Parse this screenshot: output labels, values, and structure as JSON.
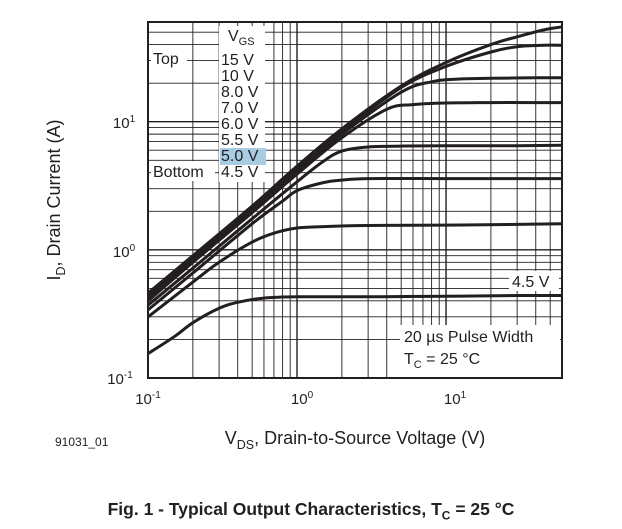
{
  "chart_data": {
    "type": "line",
    "x_scale": "log",
    "y_scale": "log",
    "xlim": [
      0.1,
      60
    ],
    "ylim": [
      0.1,
      60
    ],
    "x_ticks": [
      {
        "value": 0.1,
        "base": "10",
        "exp": "-1"
      },
      {
        "value": 1,
        "base": "10",
        "exp": "0"
      },
      {
        "value": 10,
        "base": "10",
        "exp": "1"
      }
    ],
    "y_ticks": [
      {
        "value": 0.1,
        "base": "10",
        "exp": "-1"
      },
      {
        "value": 1,
        "base": "10",
        "exp": "0"
      },
      {
        "value": 10,
        "base": "10",
        "exp": "1"
      }
    ],
    "xlabel": {
      "main": "V",
      "sub": "DS",
      "rest": ", Drain-to-Source Voltage (V)"
    },
    "ylabel": {
      "main": "I",
      "sub": "D",
      "rest": ", Drain Current (A)"
    },
    "grid": true,
    "legend": {
      "header_main": "V",
      "header_sub": "GS",
      "top_label": "Top",
      "bottom_label": "Bottom",
      "entries": [
        "15 V",
        "10 V",
        "8.0 V",
        "7.0 V",
        "6.0 V",
        "5.5 V",
        "5.0 V",
        "4.5 V"
      ],
      "highlight_index": 6,
      "highlight_color": "#a8cce4"
    },
    "annotations": {
      "curve_label": "4.5 V",
      "pulse_width": "20 µs Pulse Width",
      "temp_main": "T",
      "temp_sub": "C",
      "temp_rest": " = 25 °C"
    },
    "series": [
      {
        "x": [
          0.1,
          0.2,
          0.5,
          1,
          2,
          5,
          10,
          20,
          30,
          45,
          60
        ],
        "y": [
          0.46,
          0.9,
          2.2,
          4.5,
          8.8,
          19,
          29,
          40,
          46,
          52,
          55
        ]
      },
      {
        "x": [
          0.1,
          0.2,
          0.5,
          1,
          2,
          5,
          10,
          20,
          30,
          45,
          60
        ],
        "y": [
          0.44,
          0.87,
          2.15,
          4.3,
          8.4,
          18.5,
          27,
          35,
          38.5,
          39.5,
          39.5
        ]
      },
      {
        "x": [
          0.1,
          0.2,
          0.5,
          1,
          2,
          5,
          8,
          12,
          20,
          40,
          60
        ],
        "y": [
          0.42,
          0.83,
          2.05,
          4.1,
          8.0,
          17,
          20.5,
          21.5,
          21.8,
          22,
          22
        ]
      },
      {
        "x": [
          0.1,
          0.2,
          0.5,
          1,
          2,
          4,
          6,
          10,
          20,
          40,
          60
        ],
        "y": [
          0.4,
          0.8,
          1.95,
          3.9,
          7.5,
          12.5,
          13.6,
          14,
          14.1,
          14.1,
          14.1
        ]
      },
      {
        "x": [
          0.1,
          0.2,
          0.5,
          1,
          1.5,
          2,
          3,
          5,
          10,
          30,
          60
        ],
        "y": [
          0.37,
          0.72,
          1.75,
          3.4,
          4.9,
          5.9,
          6.35,
          6.45,
          6.5,
          6.5,
          6.55
        ]
      },
      {
        "x": [
          0.1,
          0.2,
          0.5,
          0.8,
          1,
          1.5,
          2,
          3,
          10,
          30,
          60
        ],
        "y": [
          0.34,
          0.66,
          1.6,
          2.4,
          2.9,
          3.35,
          3.5,
          3.6,
          3.6,
          3.6,
          3.6
        ]
      },
      {
        "x": [
          0.1,
          0.2,
          0.3,
          0.5,
          0.7,
          1,
          1.5,
          3,
          10,
          30,
          60
        ],
        "y": [
          0.3,
          0.56,
          0.8,
          1.15,
          1.35,
          1.48,
          1.52,
          1.55,
          1.56,
          1.58,
          1.6
        ]
      },
      {
        "x": [
          0.1,
          0.15,
          0.2,
          0.3,
          0.4,
          0.6,
          1,
          3,
          10,
          30,
          60
        ],
        "y": [
          0.155,
          0.21,
          0.27,
          0.35,
          0.39,
          0.42,
          0.43,
          0.43,
          0.435,
          0.44,
          0.44
        ]
      }
    ]
  },
  "footer": {
    "figure_id": "91031_01",
    "caption_main": "Fig. 1 - Typical Output Characteristics, T",
    "caption_sub": "C",
    "caption_rest": " = 25 °C"
  }
}
